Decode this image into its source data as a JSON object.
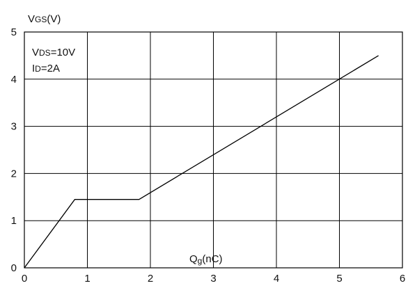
{
  "chart_data": {
    "type": "line",
    "ylabel": "VGS(V)",
    "ylabel_parts": {
      "main": "V",
      "sub": "GS",
      "unit": "(V)"
    },
    "xlabel": "Qg(nC)",
    "xlabel_parts": {
      "main": "Q",
      "sub": "g",
      "unit": "(nC)"
    },
    "xlim": [
      0,
      6
    ],
    "ylim": [
      0,
      5
    ],
    "x_ticks": [
      "0",
      "1",
      "2",
      "3",
      "4",
      "5",
      "6"
    ],
    "y_ticks": [
      "0",
      "1",
      "2",
      "3",
      "4",
      "5"
    ],
    "grid": true,
    "annotations": [
      {
        "main": "V",
        "sub": "DS",
        "rest": "=10V"
      },
      {
        "main": "I",
        "sub": "D",
        "rest": "=2A"
      }
    ],
    "series": [
      {
        "x": [
          0,
          0.8,
          1.82,
          5.62
        ],
        "y": [
          0,
          1.45,
          1.45,
          4.5
        ]
      }
    ],
    "colors": {
      "line": "#000000",
      "grid": "#000000"
    }
  }
}
